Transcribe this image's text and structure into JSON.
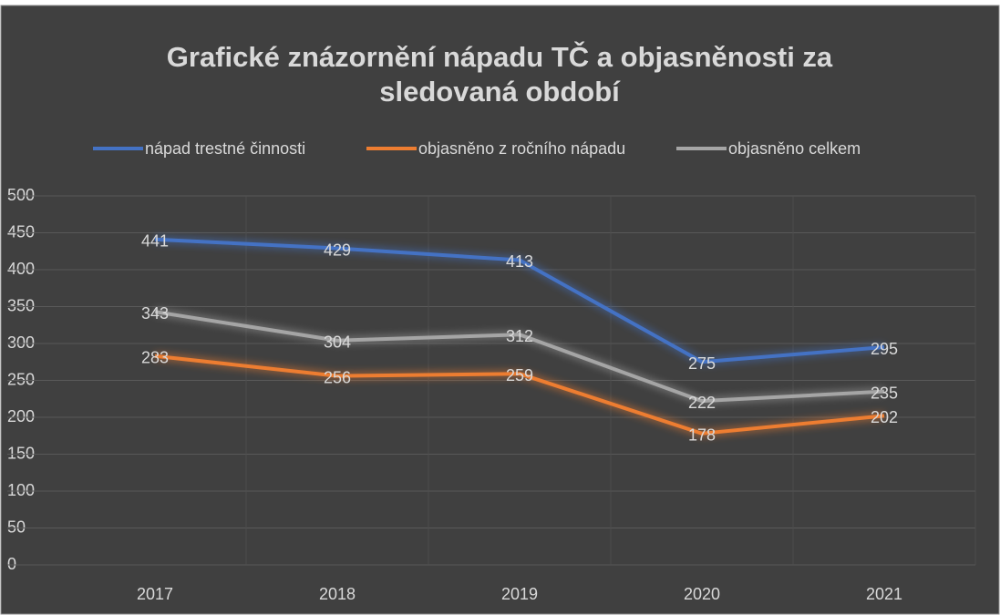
{
  "chart_data": {
    "type": "line",
    "title": "Grafické znázornění nápadu TČ a objasněnosti za sledovaná období",
    "categories": [
      "2017",
      "2018",
      "2019",
      "2020",
      "2021"
    ],
    "series": [
      {
        "name": "nápad trestné činnosti",
        "color": "#4472c4",
        "values": [
          441,
          429,
          413,
          275,
          295
        ]
      },
      {
        "name": "objasněno z ročního nápadu",
        "color": "#ed7d31",
        "values": [
          283,
          256,
          259,
          178,
          202
        ]
      },
      {
        "name": "objasněno celkem",
        "color": "#a5a5a5",
        "values": [
          343,
          304,
          312,
          222,
          235
        ]
      }
    ],
    "ylim": [
      0,
      500
    ],
    "yticks": [
      0,
      50,
      100,
      150,
      200,
      250,
      300,
      350,
      400,
      450,
      500
    ],
    "grid": true,
    "legend": "top"
  }
}
